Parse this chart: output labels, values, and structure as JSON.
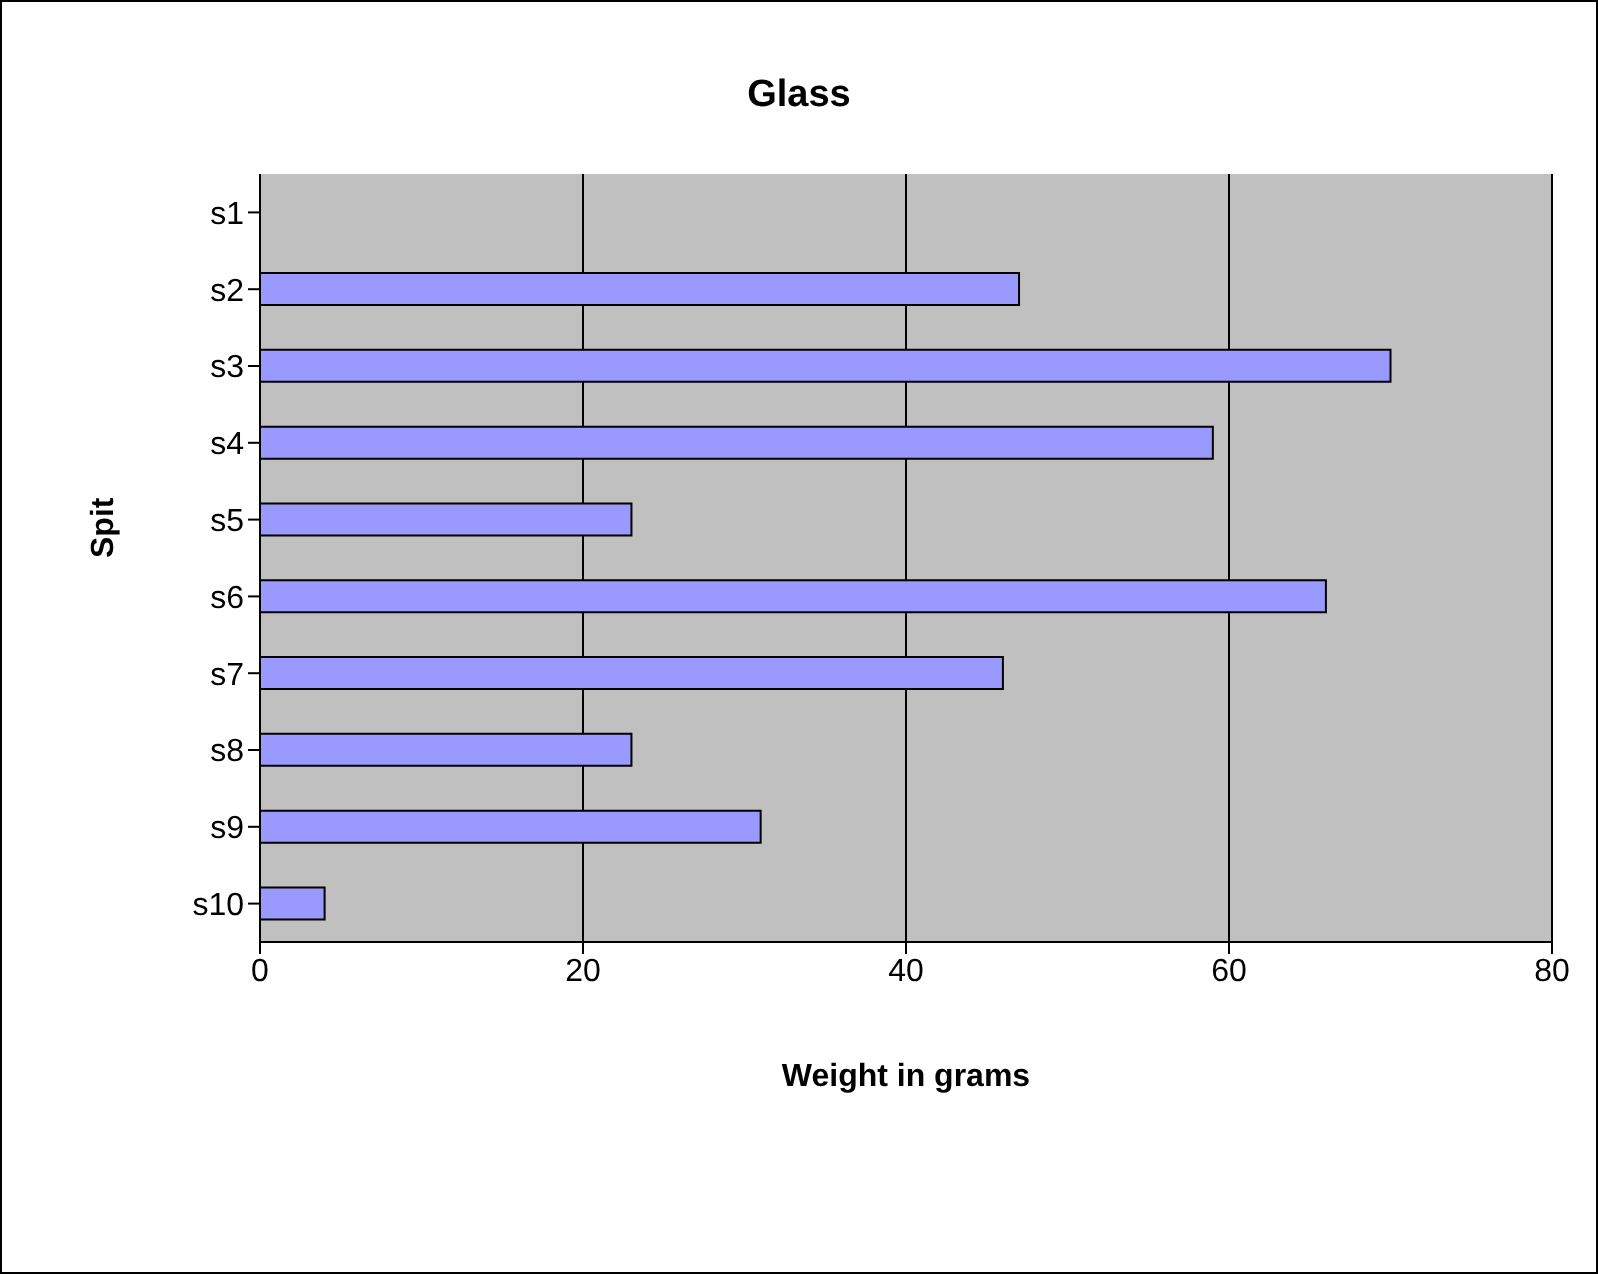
{
  "chart_data": {
    "type": "bar",
    "orientation": "horizontal",
    "title": "Glass",
    "xlabel": "Weight in grams",
    "ylabel": "Spit",
    "categories": [
      "s1",
      "s2",
      "s3",
      "s4",
      "s5",
      "s6",
      "s7",
      "s8",
      "s9",
      "s10"
    ],
    "values": [
      0,
      47,
      70,
      59,
      23,
      66,
      46,
      23,
      31,
      4
    ],
    "color": "#9999ff",
    "xlim": [
      0,
      80
    ],
    "xticks": [
      0,
      20,
      40,
      60,
      80
    ],
    "grid": "x",
    "legend": false
  }
}
